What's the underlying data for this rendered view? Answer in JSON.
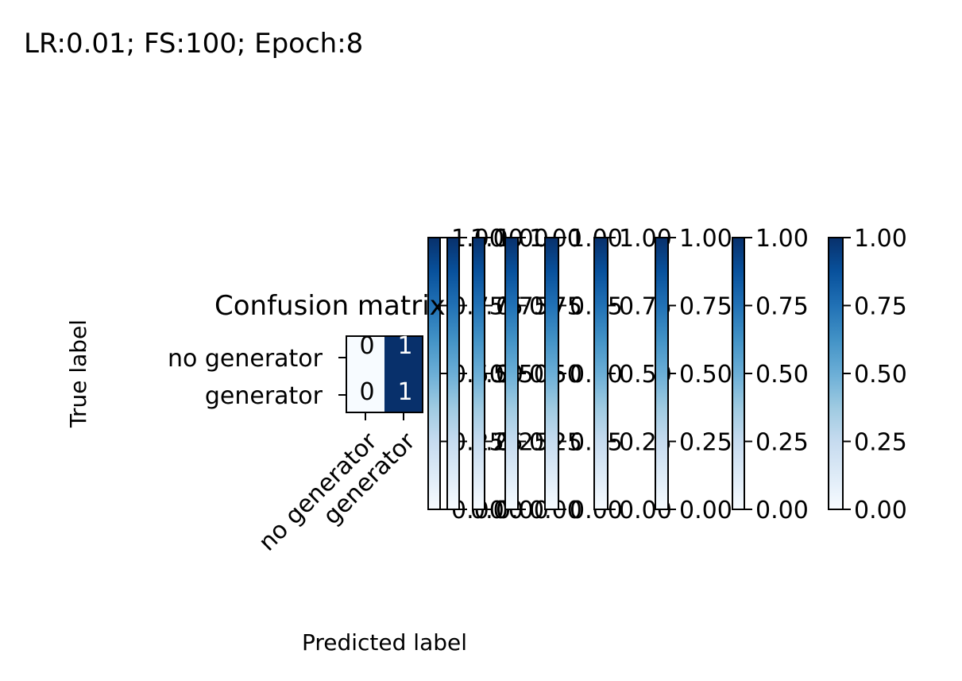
{
  "figure": {
    "suptitle": "LR:0.01;  FS:100;   Epoch:8"
  },
  "chart_data": {
    "type": "heatmap",
    "title": "Confusion matrix",
    "xlabel": "Predicted label",
    "ylabel": "True label",
    "x_categories": [
      "no generator",
      "generator"
    ],
    "y_categories": [
      "no generator",
      "generator"
    ],
    "values": [
      [
        0,
        1
      ],
      [
        0,
        1
      ]
    ],
    "cell_labels": [
      [
        "0",
        "1"
      ],
      [
        "0",
        "1"
      ]
    ],
    "colormap": "Blues",
    "colormap_stops": [
      "#f7fbff",
      "#deebf7",
      "#c6dbef",
      "#9ecae1",
      "#6baed6",
      "#4292c6",
      "#2171b5",
      "#08519c",
      "#08306b"
    ],
    "vmin": 0,
    "vmax": 1,
    "colorbar_ticks": [
      0.0,
      0.25,
      0.5,
      0.75,
      1.0
    ],
    "colorbar_tick_labels": [
      "0.00",
      "0.25",
      "0.50",
      "0.75",
      "1.00"
    ],
    "colorbar_count": 9
  }
}
